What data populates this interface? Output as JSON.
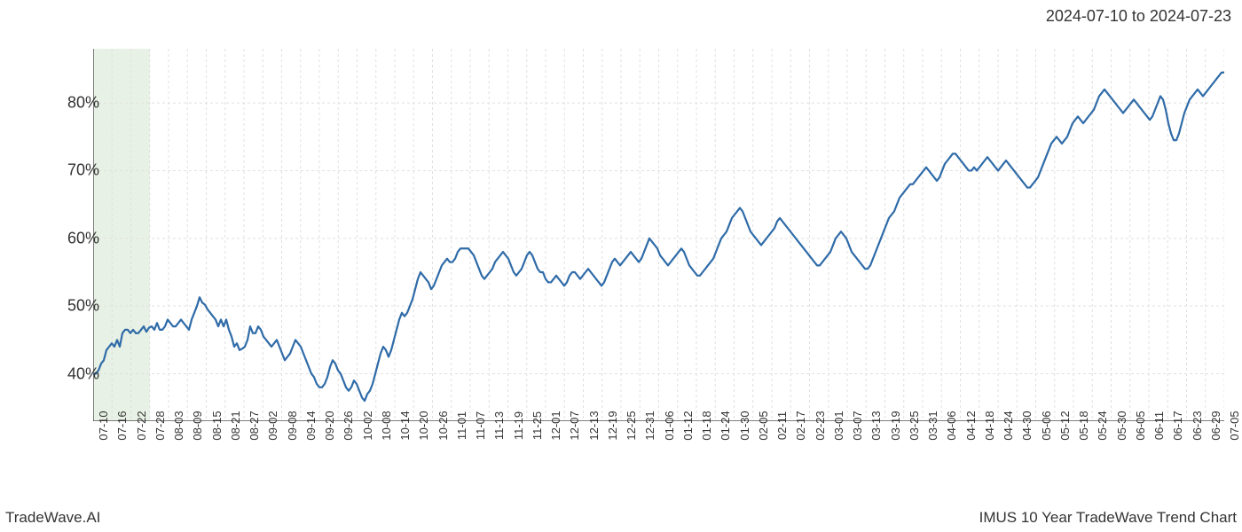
{
  "header": {
    "date_range": "2024-07-10 to 2024-07-23"
  },
  "footer": {
    "brand": "TradeWave.AI",
    "chart_title": "IMUS 10 Year TradeWave Trend Chart"
  },
  "chart": {
    "type": "line",
    "background_color": "#ffffff",
    "line_color": "#2f6ba8",
    "line_width": 2.2,
    "grid_color": "#e0e0e0",
    "grid_style": "dashed",
    "axis_spine_color": "#333333",
    "highlight_band": {
      "color": "#d9e8d4",
      "opacity": 0.6,
      "x_start_idx": 0,
      "x_end_idx": 3
    },
    "y_axis": {
      "min": 33,
      "max": 88,
      "ticks": [
        40,
        50,
        60,
        70,
        80
      ],
      "tick_labels": [
        "40%",
        "50%",
        "60%",
        "70%",
        "80%"
      ],
      "label_fontsize": 18,
      "tick_color": "#333333"
    },
    "x_axis": {
      "label_fontsize": 13,
      "label_rotation": -90,
      "tick_color": "#333333",
      "tick_labels": [
        "07-10",
        "07-16",
        "07-22",
        "07-28",
        "08-03",
        "08-09",
        "08-15",
        "08-21",
        "08-27",
        "09-02",
        "09-08",
        "09-14",
        "09-20",
        "09-26",
        "10-02",
        "10-08",
        "10-14",
        "10-20",
        "10-26",
        "11-01",
        "11-07",
        "11-13",
        "11-19",
        "11-25",
        "12-01",
        "12-07",
        "12-13",
        "12-19",
        "12-25",
        "12-31",
        "01-06",
        "01-12",
        "01-18",
        "01-24",
        "01-30",
        "02-05",
        "02-11",
        "02-17",
        "02-23",
        "03-01",
        "03-07",
        "03-13",
        "03-19",
        "03-25",
        "03-31",
        "04-06",
        "04-12",
        "04-18",
        "04-24",
        "04-30",
        "05-06",
        "05-12",
        "05-18",
        "05-24",
        "05-30",
        "06-05",
        "06-11",
        "06-17",
        "06-23",
        "06-29",
        "07-05"
      ]
    },
    "series": {
      "values": [
        40,
        40,
        40.5,
        41.5,
        42,
        43.5,
        44,
        44.5,
        44,
        45,
        44,
        46,
        46.5,
        46.5,
        46,
        46.5,
        46,
        46,
        46.5,
        47,
        46.2,
        46.8,
        47,
        46.5,
        47.5,
        46.5,
        46.5,
        47,
        48,
        47.5,
        47,
        47,
        47.5,
        48,
        47.5,
        47,
        46.5,
        48,
        49,
        50,
        51.3,
        50.5,
        50.2,
        49.5,
        49,
        48.5,
        48,
        47,
        48,
        47,
        48,
        46.5,
        45.5,
        44,
        44.5,
        43.5,
        43.7,
        44,
        45,
        47,
        46,
        46,
        47,
        46.5,
        45.5,
        45,
        44.5,
        44,
        44.5,
        45,
        44,
        43,
        42,
        42.5,
        43,
        44,
        45,
        44.5,
        44,
        43,
        42,
        41,
        40,
        39.5,
        38.5,
        38,
        38,
        38.5,
        39.5,
        41,
        42,
        41.5,
        40.5,
        40,
        39,
        38,
        37.5,
        38,
        39,
        38.5,
        37.5,
        36.5,
        36,
        37,
        37.5,
        38.5,
        40,
        41.5,
        43,
        44,
        43.5,
        42.5,
        43.5,
        45,
        46.5,
        48,
        49,
        48.5,
        49,
        50,
        51,
        52.5,
        54,
        55,
        54.5,
        54,
        53.5,
        52.5,
        53,
        54,
        55,
        56,
        56.5,
        57,
        56.5,
        56.5,
        57,
        58,
        58.5,
        58.5,
        58.5,
        58.5,
        58,
        57.5,
        56.5,
        55.5,
        54.5,
        54,
        54.5,
        55,
        55.5,
        56.5,
        57,
        57.5,
        58,
        57.5,
        57,
        56,
        55,
        54.5,
        55,
        55.5,
        56.5,
        57.5,
        58,
        57.5,
        56.5,
        55.5,
        55,
        55,
        54,
        53.5,
        53.5,
        54,
        54.5,
        54,
        53.5,
        53,
        53.5,
        54.5,
        55,
        55,
        54.5,
        54,
        54.5,
        55,
        55.5,
        55,
        54.5,
        54,
        53.5,
        53,
        53.5,
        54.5,
        55.5,
        56.5,
        57,
        56.5,
        56,
        56.5,
        57,
        57.5,
        58,
        57.5,
        57,
        56.5,
        57,
        58,
        59,
        60,
        59.5,
        59,
        58.5,
        57.5,
        57,
        56.5,
        56,
        56.5,
        57,
        57.5,
        58,
        58.5,
        58,
        57,
        56,
        55.5,
        55,
        54.5,
        54.5,
        55,
        55.5,
        56,
        56.5,
        57,
        58,
        59,
        60,
        60.5,
        61,
        62,
        63,
        63.5,
        64,
        64.5,
        64,
        63,
        62,
        61,
        60.5,
        60,
        59.5,
        59,
        59.5,
        60,
        60.5,
        61,
        61.5,
        62.5,
        63,
        62.5,
        62,
        61.5,
        61,
        60.5,
        60,
        59.5,
        59,
        58.5,
        58,
        57.5,
        57,
        56.5,
        56,
        56,
        56.5,
        57,
        57.5,
        58,
        59,
        60,
        60.5,
        61,
        60.5,
        60,
        59,
        58,
        57.5,
        57,
        56.5,
        56,
        55.5,
        55.5,
        56,
        57,
        58,
        59,
        60,
        61,
        62,
        63,
        63.5,
        64,
        65,
        66,
        66.5,
        67,
        67.5,
        68,
        68,
        68.5,
        69,
        69.5,
        70,
        70.5,
        70,
        69.5,
        69,
        68.5,
        69,
        70,
        71,
        71.5,
        72,
        72.5,
        72.5,
        72,
        71.5,
        71,
        70.5,
        70,
        70,
        70.5,
        70,
        70.5,
        71,
        71.5,
        72,
        71.5,
        71,
        70.5,
        70,
        70.5,
        71,
        71.5,
        71,
        70.5,
        70,
        69.5,
        69,
        68.5,
        68,
        67.5,
        67.5,
        68,
        68.5,
        69,
        70,
        71,
        72,
        73,
        74,
        74.5,
        75,
        74.5,
        74,
        74.5,
        75,
        76,
        77,
        77.5,
        78,
        77.5,
        77,
        77.5,
        78,
        78.5,
        79,
        80,
        81,
        81.5,
        82,
        81.5,
        81,
        80.5,
        80,
        79.5,
        79,
        78.5,
        79,
        79.5,
        80,
        80.5,
        80,
        79.5,
        79,
        78.5,
        78,
        77.5,
        78,
        79,
        80,
        81,
        80.5,
        79,
        77,
        75.5,
        74.5,
        74.5,
        75.5,
        77,
        78.5,
        79.5,
        80.5,
        81,
        81.5,
        82,
        81.5,
        81,
        81.5,
        82,
        82.5,
        83,
        83.5,
        84,
        84.5,
        84.5
      ]
    }
  }
}
